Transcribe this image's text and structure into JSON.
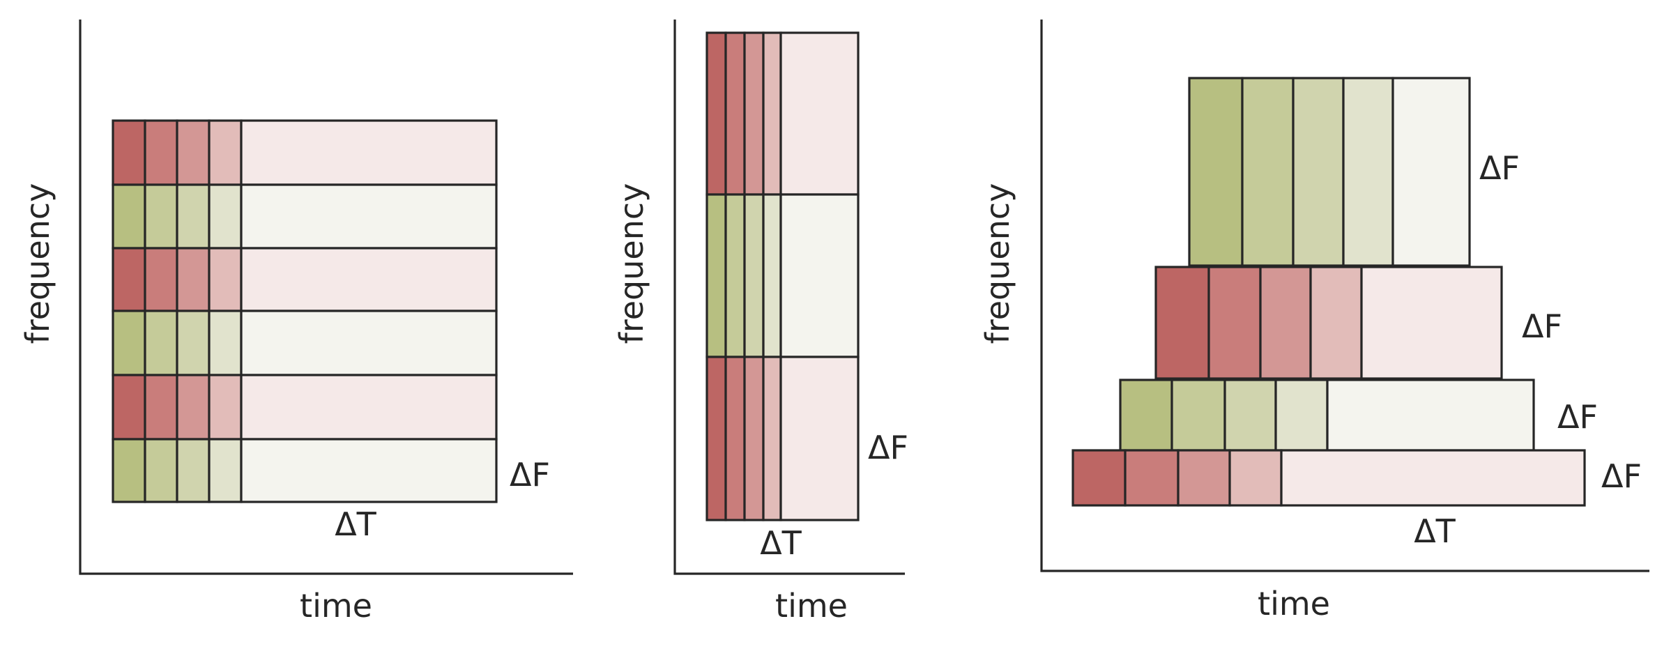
{
  "colors": {
    "red": [
      "#bd6664",
      "#c97d7b",
      "#d39795",
      "#e2bcb9",
      "#f5e9e8"
    ],
    "green": [
      "#b7bf81",
      "#c5cb99",
      "#d0d4ae",
      "#e1e3cd",
      "#f4f4ee"
    ],
    "stroke": "#262626"
  },
  "panels": [
    {
      "id": "panel-1",
      "x_label": "time",
      "y_label": "frequency",
      "dt_label": "ΔT",
      "df_labels": [
        "ΔF"
      ]
    },
    {
      "id": "panel-2",
      "x_label": "time",
      "y_label": "frequency",
      "dt_label": "ΔT",
      "df_labels": [
        "ΔF"
      ]
    },
    {
      "id": "panel-3",
      "x_label": "time",
      "y_label": "frequency",
      "dt_label": "ΔT",
      "df_labels": [
        "ΔF",
        "ΔF",
        "ΔF",
        "ΔF"
      ]
    }
  ]
}
